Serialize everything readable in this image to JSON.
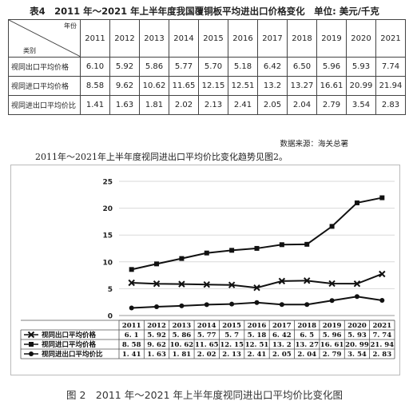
{
  "table": {
    "title": "表4　2011 年～2021 年上半年度我国覆铜板平均进出口价格变化　单位: 美元/千克",
    "header_top": "年份",
    "header_bottom": "类别",
    "years": [
      "2011",
      "2012",
      "2013",
      "2014",
      "2015",
      "2016",
      "2017",
      "2018",
      "2019",
      "2020",
      "2021"
    ],
    "rows": [
      {
        "label": "视同出口平均价格",
        "values": [
          "6.10",
          "5.92",
          "5.86",
          "5.77",
          "5.70",
          "5.18",
          "6.42",
          "6.50",
          "5.96",
          "5.93",
          "7.74"
        ]
      },
      {
        "label": "视同进口平均价格",
        "values": [
          "8.58",
          "9.62",
          "10.62",
          "11.65",
          "12.15",
          "12.51",
          "13.2",
          "13.27",
          "16.61",
          "20.99",
          "21.94"
        ]
      },
      {
        "label": "视同进出口平均价比",
        "values": [
          "1.41",
          "1.63",
          "1.81",
          "2.02",
          "2.13",
          "2.41",
          "2.05",
          "2.04",
          "2.79",
          "3.54",
          "2.83"
        ]
      }
    ],
    "source": "数据来源：海关总署"
  },
  "intro_text": "2011年～2021年上半年度视同进出口平均价比变化趋势见图2。",
  "chart_data": {
    "type": "line",
    "title": "",
    "xlabel": "",
    "ylabel": "",
    "categories": [
      "2011",
      "2012",
      "2013",
      "2014",
      "2015",
      "2016",
      "2017",
      "2018",
      "2019",
      "2020",
      "2021"
    ],
    "ylim": [
      0,
      25
    ],
    "yticks": [
      0,
      5,
      10,
      15,
      20,
      25
    ],
    "grid": "horizontal",
    "series": [
      {
        "name": "视同出口平均价格",
        "marker": "x",
        "values": [
          6.1,
          5.92,
          5.86,
          5.77,
          5.7,
          5.18,
          6.42,
          6.5,
          5.96,
          5.93,
          7.74
        ],
        "labels": [
          "6. 1",
          "5. 92",
          "5. 86",
          "5. 77",
          "5. 7",
          "5. 18",
          "6. 42",
          "6. 5",
          "5. 96",
          "5. 93",
          "7. 74"
        ]
      },
      {
        "name": "视同进口平均价格",
        "marker": "square",
        "values": [
          8.58,
          9.62,
          10.62,
          11.65,
          12.15,
          12.51,
          13.2,
          13.27,
          16.61,
          20.99,
          21.94
        ],
        "labels": [
          "8. 58",
          "9. 62",
          "10. 62",
          "11. 65",
          "12. 15",
          "12. 51",
          "13. 2",
          "13. 27",
          "16. 61",
          "20. 99",
          "21. 94"
        ]
      },
      {
        "name": "视同进出口平均价比",
        "marker": "circle",
        "values": [
          1.41,
          1.63,
          1.81,
          2.02,
          2.13,
          2.41,
          2.05,
          2.04,
          2.79,
          3.54,
          2.83
        ],
        "labels": [
          "1. 41",
          "1. 63",
          "1. 81",
          "2. 02",
          "2. 13",
          "2. 41",
          "2. 05",
          "2. 04",
          "2. 79",
          "3. 54",
          "2. 83"
        ]
      }
    ],
    "colors": {
      "line": "#111111",
      "grid": "#d9d9d9"
    }
  },
  "caption": "图 2　2011 年～2021 年上半年度视同进出口平均价比变化图"
}
